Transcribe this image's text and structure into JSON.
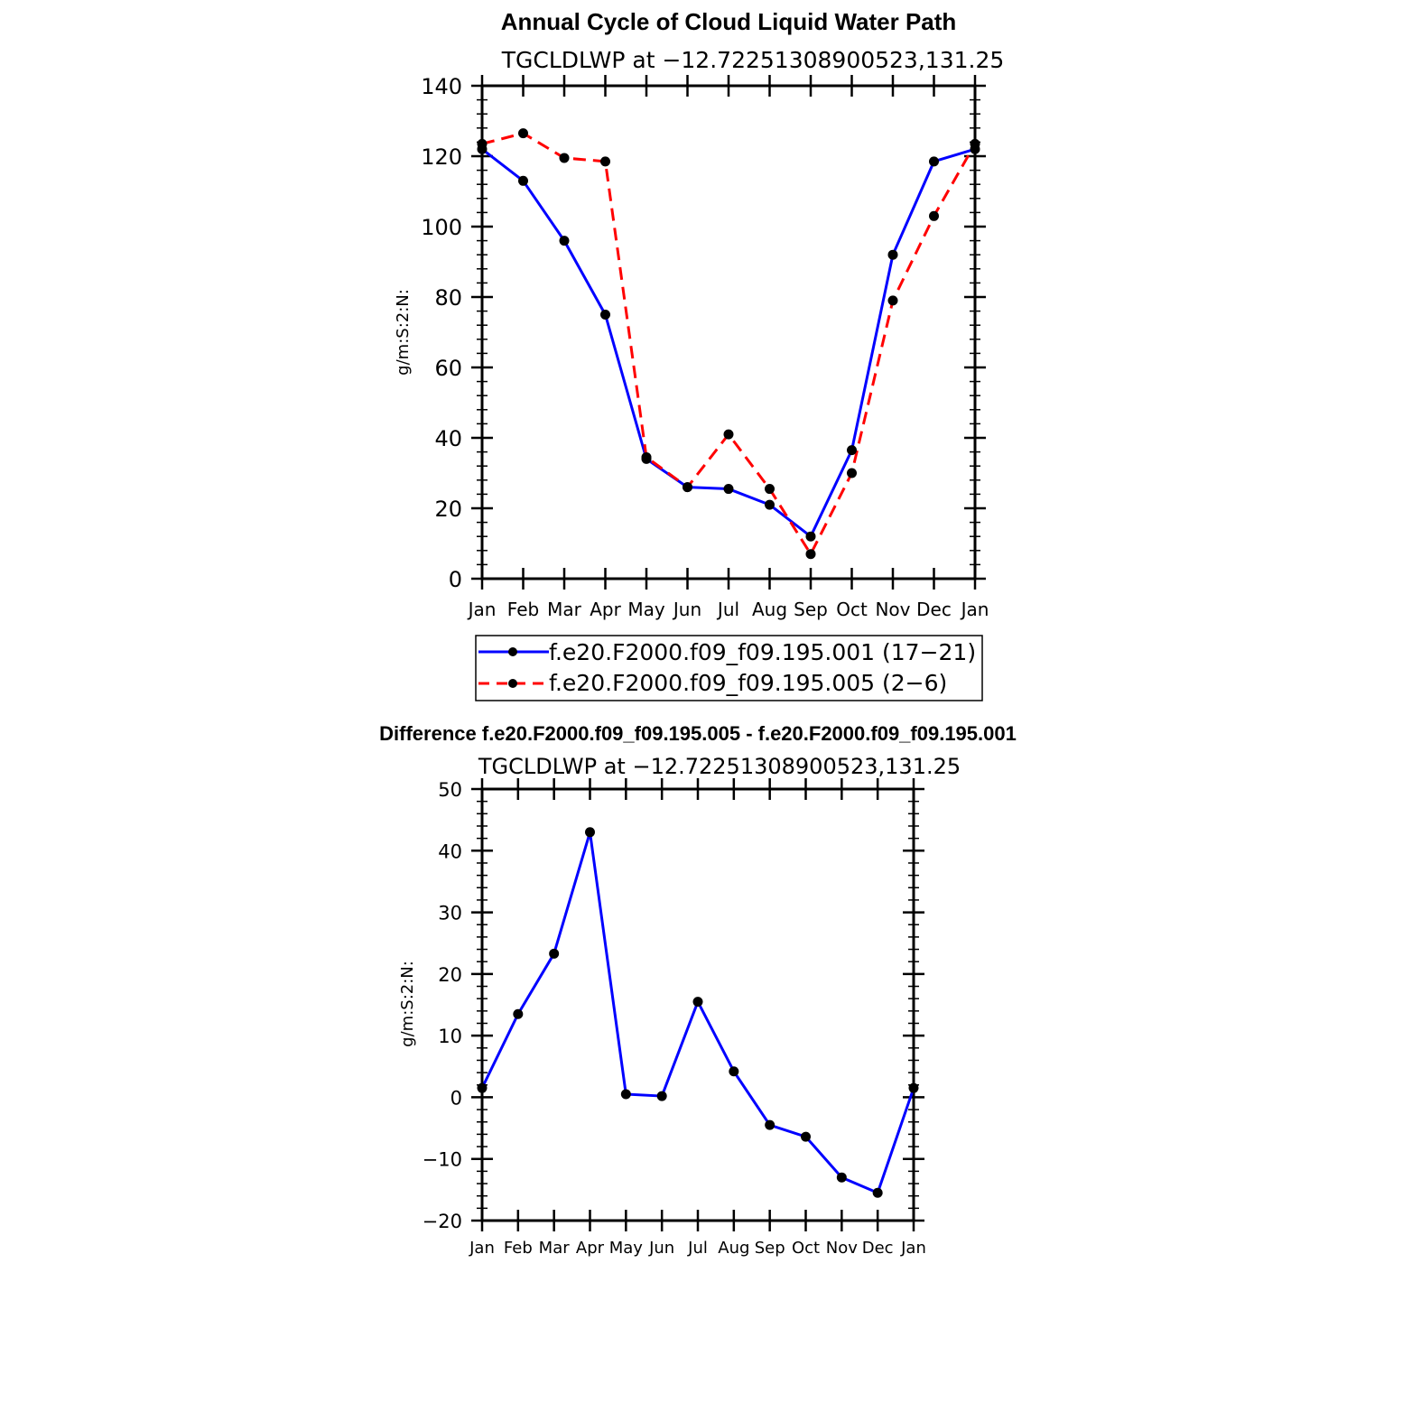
{
  "colors": {
    "series_a": "#0000ff",
    "series_b": "#ff0000",
    "marker": "#000000",
    "axis": "#000000"
  },
  "chart_data": [
    {
      "type": "line",
      "title": "Annual Cycle of Cloud Liquid Water Path",
      "subtitle": "TGCLDLWP at −12.72251308900523,131.25",
      "xlabel": "",
      "ylabel": "g/m:S:2:N:",
      "categories": [
        "Jan",
        "Feb",
        "Mar",
        "Apr",
        "May",
        "Jun",
        "Jul",
        "Aug",
        "Sep",
        "Oct",
        "Nov",
        "Dec",
        "Jan"
      ],
      "ylim": [
        0,
        140
      ],
      "yticks": [
        "0",
        "20",
        "40",
        "60",
        "80",
        "100",
        "120",
        "140"
      ],
      "legend": "bottom",
      "series": [
        {
          "name": "f.e20.F2000.f09_f09.195.001 (17−21)",
          "style": "solid",
          "color": "#0000ff",
          "values": [
            122,
            113,
            96,
            75,
            34,
            26,
            25.5,
            21,
            12,
            36.5,
            92,
            118.5,
            122
          ]
        },
        {
          "name": "f.e20.F2000.f09_f09.195.005 (2−6)",
          "style": "dashed",
          "color": "#ff0000",
          "values": [
            123.5,
            126.5,
            119.5,
            118.5,
            34.5,
            26,
            41,
            25.5,
            7,
            30,
            79,
            103,
            123.5
          ]
        }
      ]
    },
    {
      "type": "line",
      "title": "Difference f.e20.F2000.f09_f09.195.005 - f.e20.F2000.f09_f09.195.001",
      "subtitle": "TGCLDLWP at −12.72251308900523,131.25",
      "xlabel": "",
      "ylabel": "g/m:S:2:N:",
      "categories": [
        "Jan",
        "Feb",
        "Mar",
        "Apr",
        "May",
        "Jun",
        "Jul",
        "Aug",
        "Sep",
        "Oct",
        "Nov",
        "Dec",
        "Jan"
      ],
      "ylim": [
        -20,
        50
      ],
      "yticks": [
        "−20",
        "−10",
        "0",
        "10",
        "20",
        "30",
        "40",
        "50"
      ],
      "series": [
        {
          "style": "solid",
          "color": "#0000ff",
          "values": [
            1.5,
            13.5,
            23.3,
            43,
            0.5,
            0.2,
            15.5,
            4.2,
            -4.5,
            -6.4,
            -13,
            -15.5,
            1.5
          ]
        }
      ]
    }
  ]
}
